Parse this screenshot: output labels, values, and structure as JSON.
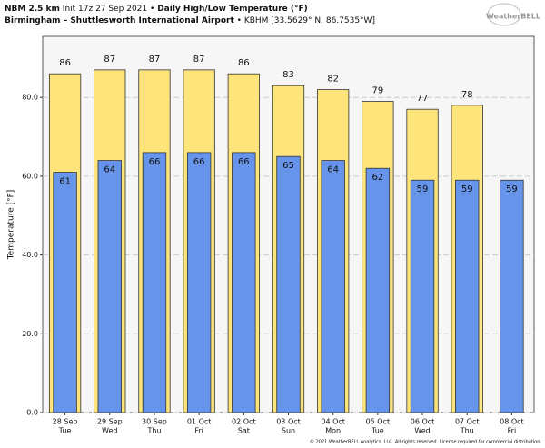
{
  "chart_data": {
    "type": "bar",
    "title_model": "NBM 2.5 km",
    "title_init": "Init 17z 27 Sep 2021",
    "separator": "•",
    "title": "Daily High/Low Temperature (°F)",
    "subtitle": "Birmingham – Shuttlesworth International Airport",
    "subtitle_station": "KBHM [33.5629° N, 86.7535°W]",
    "logo": "WeatherBELL",
    "footer": "© 2021 WeatherBELL Analytics, LLC. All rights reserved. License required for commercial distribution.",
    "ylabel": "Temperature [°F]",
    "categories": [
      "28 Sep",
      "29 Sep",
      "30 Sep",
      "01 Oct",
      "02 Oct",
      "03 Oct",
      "04 Oct",
      "05 Oct",
      "06 Oct",
      "07 Oct",
      "08 Oct"
    ],
    "weekdays": [
      "Tue",
      "Wed",
      "Thu",
      "Fri",
      "Sat",
      "Sun",
      "Mon",
      "Tue",
      "Wed",
      "Thu",
      "Fri"
    ],
    "series": [
      {
        "color": "#fde57c",
        "values": [
          86,
          87,
          87,
          87,
          86,
          83,
          82,
          79,
          77,
          78,
          null
        ]
      },
      {
        "color": "#6594ea",
        "values": [
          61,
          64,
          66,
          66,
          66,
          65,
          64,
          62,
          59,
          59,
          59
        ]
      }
    ],
    "ylim": [
      0,
      95.5
    ],
    "yticks": [
      {
        "value": 0,
        "label": "0.0"
      },
      {
        "value": 20,
        "label": "20.0"
      },
      {
        "value": 40,
        "label": "40.0"
      },
      {
        "value": 60,
        "label": "60.0"
      },
      {
        "value": 80,
        "label": "80.0"
      }
    ],
    "grid": true
  }
}
